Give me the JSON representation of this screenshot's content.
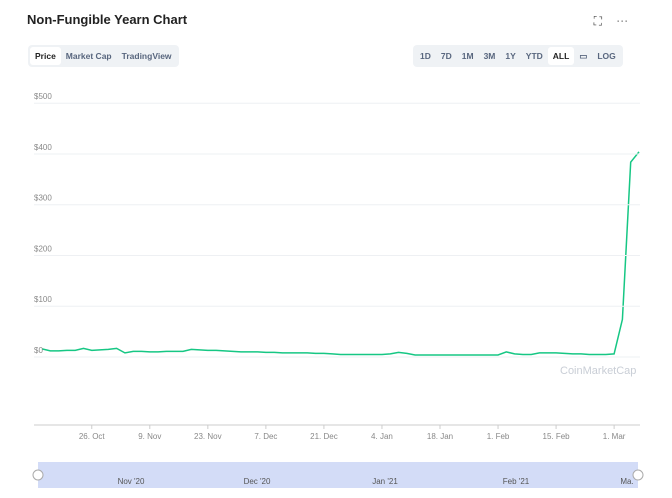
{
  "header": {
    "title": "Non-Fungible Yearn Chart"
  },
  "tabs": [
    "Price",
    "Market Cap",
    "TradingView"
  ],
  "ranges": [
    "1D",
    "7D",
    "1M",
    "3M",
    "1Y",
    "YTD",
    "ALL"
  ],
  "log_button": "LOG",
  "watermark": "CoinMarketCap",
  "navigator": {
    "labels": [
      "Nov '20",
      "Dec '20",
      "Jan '21",
      "Feb '21",
      "Ma."
    ]
  },
  "chart_data": {
    "type": "line",
    "color": "#16c784",
    "categories": [
      null,
      null,
      null,
      null,
      null,
      null,
      "26. Oct",
      null,
      null,
      null,
      null,
      null,
      null,
      "9. Nov",
      null,
      null,
      null,
      null,
      null,
      null,
      "23. Nov",
      null,
      null,
      null,
      null,
      null,
      null,
      "7. Dec",
      null,
      null,
      null,
      null,
      null,
      null,
      "21. Dec",
      null,
      null,
      null,
      null,
      null,
      null,
      "4. Jan",
      null,
      null,
      null,
      null,
      null,
      null,
      "18. Jan",
      null,
      null,
      null,
      null,
      null,
      null,
      "1. Feb",
      null,
      null,
      null,
      null,
      null,
      null,
      "15. Feb",
      null,
      null,
      null,
      null,
      null,
      null,
      "1. Mar",
      null,
      null,
      null
    ],
    "values": [
      16,
      12,
      12,
      13,
      13,
      17,
      13,
      14,
      15,
      17,
      8,
      11,
      11,
      10,
      10,
      11,
      11,
      11,
      15,
      14,
      13,
      13,
      12,
      11,
      10,
      10,
      10,
      9,
      9,
      8,
      8,
      8,
      8,
      7,
      7,
      6,
      5,
      5,
      5,
      5,
      5,
      5,
      6,
      9,
      7,
      4,
      4,
      4,
      4,
      4,
      4,
      4,
      4,
      4,
      4,
      4,
      10,
      6,
      5,
      5,
      8,
      8,
      8,
      7,
      6,
      6,
      5,
      5,
      5,
      6,
      74,
      384,
      404
    ],
    "ylim": [
      -134,
      530
    ],
    "yticks": [
      {
        "value": 0,
        "label": "$0"
      },
      {
        "value": 100,
        "label": "$100"
      },
      {
        "value": 200,
        "label": "$200"
      },
      {
        "value": 300,
        "label": "$300"
      },
      {
        "value": 400,
        "label": "$400"
      },
      {
        "value": 500,
        "label": "$500"
      }
    ],
    "grid": true
  }
}
